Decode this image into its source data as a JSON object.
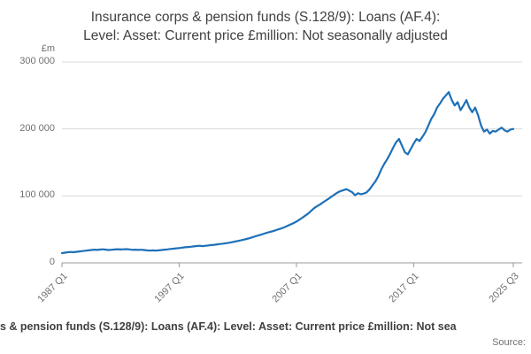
{
  "title": {
    "line1": "Insurance corps & pension funds (S.128/9): Loans (AF.4):",
    "line2": "Level: Asset: Current price £million: Not seasonally adjusted"
  },
  "axis": {
    "unit_label": "£m"
  },
  "footer": {
    "caption": "s & pension funds (S.128/9): Loans (AF.4): Level: Asset: Current price £million: Not sea",
    "source": "Source:"
  },
  "colors": {
    "line": "#1d70b8",
    "grid": "#d9d9d9",
    "axis": "#999999",
    "title_text": "#414042",
    "tick_text": "#707071"
  },
  "chart_data": {
    "type": "line",
    "title": "Insurance corps & pension funds (S.128/9): Loans (AF.4): Level: Asset: Current price £million: Not seasonally adjusted",
    "xlabel": "",
    "ylabel": "£m",
    "ylim": [
      0,
      300000
    ],
    "grid": "horizontal",
    "legend": "none",
    "frequency": "quarterly",
    "x_start": "1987 Q1",
    "x_end": "2025 Q3",
    "yticks": [
      {
        "label": "0",
        "value": 0
      },
      {
        "label": "100 000",
        "value": 100000
      },
      {
        "label": "200 000",
        "value": 200000
      },
      {
        "label": "300 000",
        "value": 300000
      }
    ],
    "xticks": [
      {
        "label": "1987 Q1",
        "index": 0
      },
      {
        "label": "1997 Q1",
        "index": 40
      },
      {
        "label": "2007 Q1",
        "index": 80
      },
      {
        "label": "2017 Q1",
        "index": 120
      },
      {
        "label": "2025 Q3",
        "index": 154
      }
    ],
    "values": [
      14500,
      15200,
      15800,
      16300,
      15900,
      16500,
      17100,
      17600,
      18100,
      18700,
      19200,
      19700,
      19300,
      19800,
      20200,
      19700,
      19200,
      19600,
      20000,
      20300,
      19900,
      20200,
      20500,
      20100,
      19400,
      19700,
      19300,
      19600,
      19100,
      18700,
      18300,
      18600,
      18300,
      18700,
      19200,
      19700,
      20100,
      20700,
      21200,
      21700,
      22100,
      22700,
      23200,
      23700,
      24100,
      24600,
      25100,
      25500,
      25000,
      25500,
      26000,
      26500,
      27000,
      27600,
      28100,
      28700,
      29300,
      30000,
      30800,
      31700,
      32600,
      33600,
      34600,
      35700,
      36800,
      38200,
      39600,
      40900,
      42200,
      43600,
      45000,
      46100,
      47300,
      48800,
      50300,
      51600,
      53400,
      55400,
      57400,
      59400,
      61600,
      64400,
      67400,
      70400,
      73600,
      77600,
      81600,
      84500,
      87000,
      90000,
      93000,
      96000,
      99000,
      102000,
      105000,
      107000,
      108500,
      110000,
      108000,
      105500,
      101000,
      104000,
      102500,
      103500,
      105500,
      110000,
      116000,
      122000,
      130000,
      140000,
      148000,
      155000,
      163000,
      172000,
      180000,
      185000,
      175000,
      165000,
      162000,
      170000,
      178000,
      185000,
      182000,
      188000,
      195000,
      205000,
      215000,
      222000,
      232000,
      238000,
      245000,
      250000,
      255000,
      243000,
      235000,
      240000,
      228000,
      235000,
      243000,
      232000,
      225000,
      232000,
      220000,
      205000,
      196000,
      199000,
      193000,
      197000,
      196000,
      199000,
      202000,
      198000,
      196000,
      199000,
      200000
    ]
  }
}
